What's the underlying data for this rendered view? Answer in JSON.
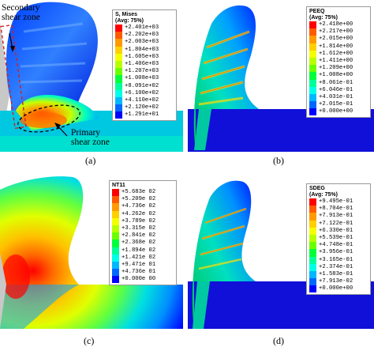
{
  "panels": [
    {
      "id": "a",
      "caption": "(a)",
      "legend": {
        "title_lines": [
          "S, Mises",
          "(Avg: 75%)"
        ],
        "values": [
          "+2.401e+03",
          "+2.202e+03",
          "+2.003e+03",
          "+1.804e+03",
          "+1.605e+03",
          "+1.406e+03",
          "+1.207e+03",
          "+1.008e+03",
          "+8.091e+02",
          "+6.100e+02",
          "+4.110e+02",
          "+2.120e+02",
          "+1.291e+01"
        ]
      },
      "annotations": {
        "secondary": [
          "Secondary",
          "shear zone"
        ],
        "primary": [
          "Primary",
          "shear zone"
        ]
      }
    },
    {
      "id": "b",
      "caption": "(b)",
      "legend": {
        "title_lines": [
          "PEEQ",
          "(Avg: 75%)"
        ],
        "values": [
          "+2.418e+00",
          "+2.217e+00",
          "+2.015e+00",
          "+1.814e+00",
          "+1.612e+00",
          "+1.411e+00",
          "+1.209e+00",
          "+1.008e+00",
          "+8.061e-01",
          "+6.046e-01",
          "+4.031e-01",
          "+2.015e-01",
          "+0.000e+00"
        ]
      }
    },
    {
      "id": "c",
      "caption": "(c)",
      "legend": {
        "title_lines": [
          "NT11"
        ],
        "values": [
          "+5.683e 02",
          "+5.209e 02",
          "+4.736e 02",
          "+4.262e 02",
          "+3.789e 02",
          "+3.315e 02",
          "+2.841e 02",
          "+2.368e 02",
          "+1.894e 02",
          "+1.421e 02",
          "+9.471e 01",
          "+4.736e 01",
          "+0.000e 00"
        ]
      }
    },
    {
      "id": "d",
      "caption": "(d)",
      "legend": {
        "title_lines": [
          "SDEG",
          "(Avg: 75%)"
        ],
        "values": [
          "+9.495e-01",
          "+8.704e-01",
          "+7.913e-01",
          "+7.122e-01",
          "+6.330e-01",
          "+5.539e-01",
          "+4.748e-01",
          "+3.956e-01",
          "+3.165e-01",
          "+2.374e-01",
          "+1.583e-01",
          "+7.913e-02",
          "+0.000e+00"
        ]
      }
    }
  ],
  "colors": {
    "scale": [
      "#ff0000",
      "#ff5a00",
      "#ff9a00",
      "#ffd000",
      "#f4ff00",
      "#b8ff00",
      "#6cff00",
      "#00ff3a",
      "#00ff9a",
      "#00ffe8",
      "#00b8ff",
      "#0068ff",
      "#0000ff"
    ],
    "workpiece": "#1010d8",
    "tool": "#c8c8c8",
    "dashed": "#d02020"
  }
}
